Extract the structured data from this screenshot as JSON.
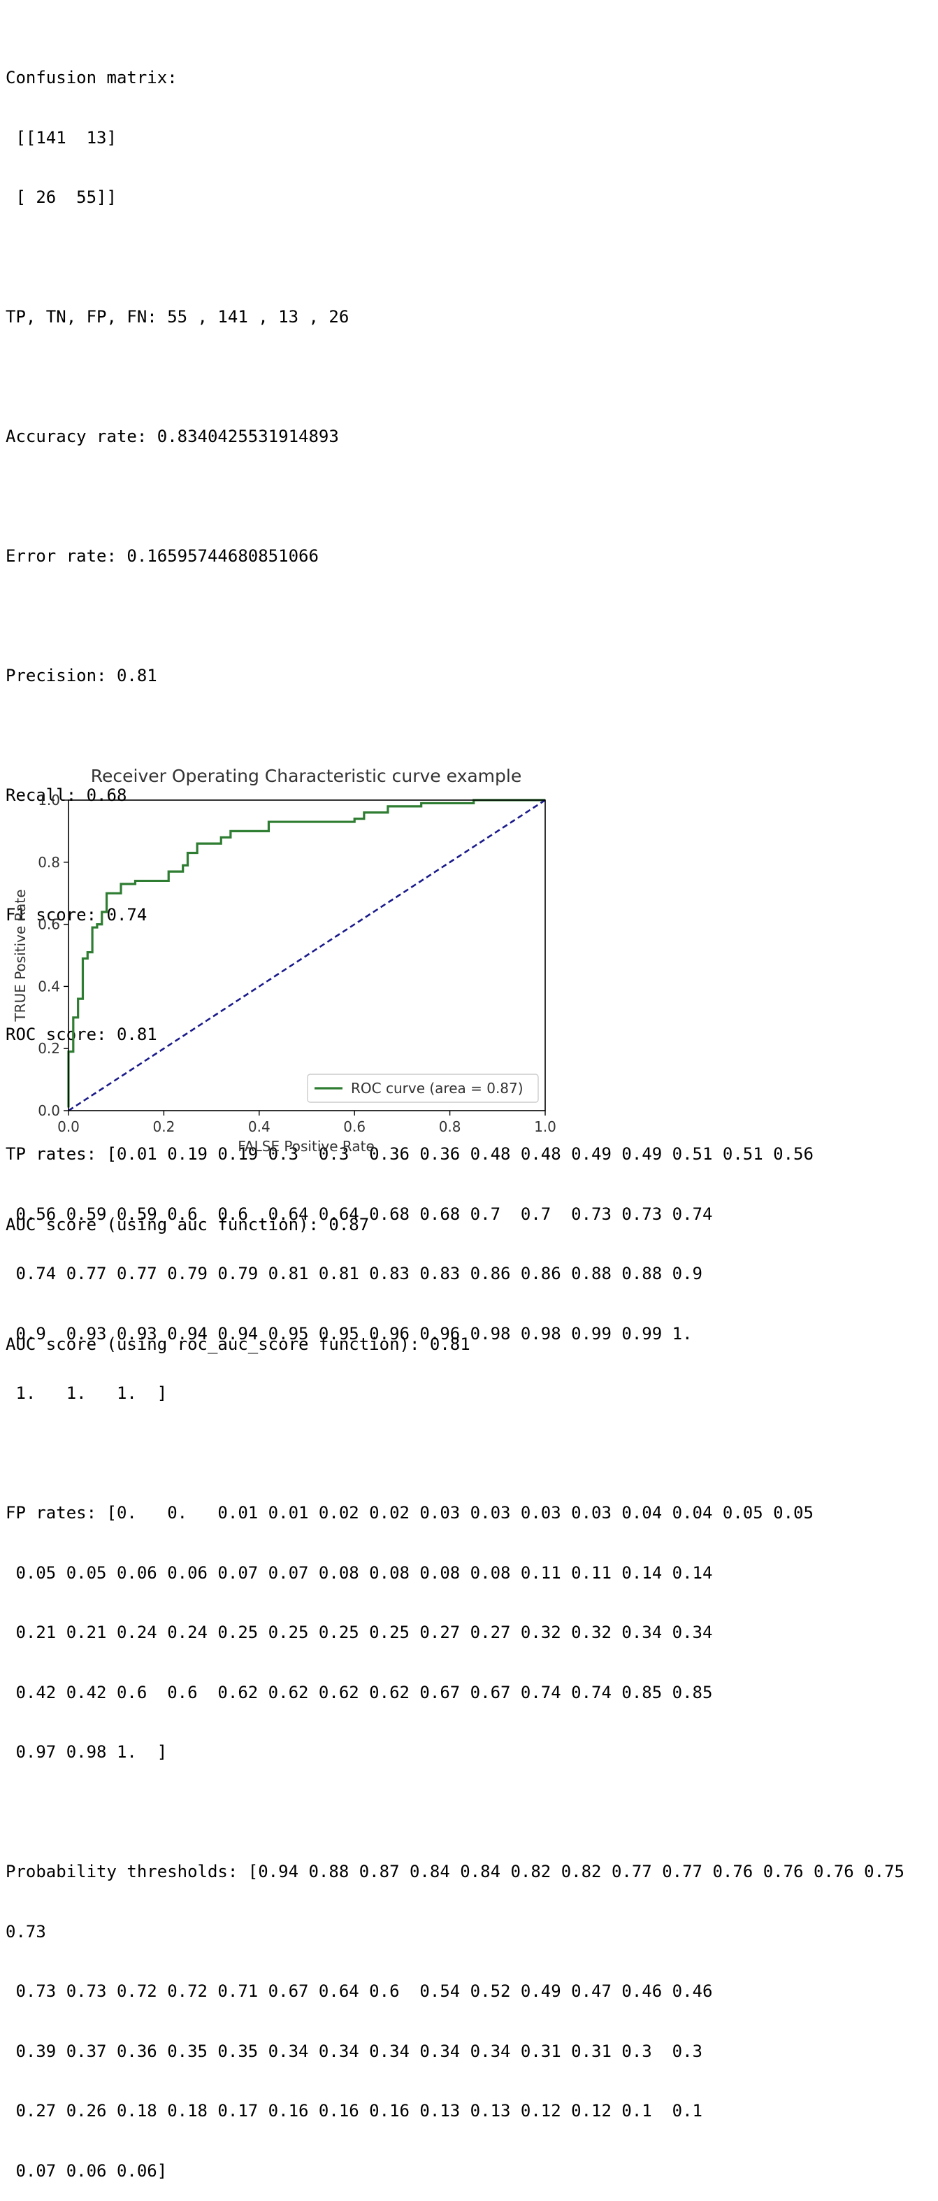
{
  "output": {
    "confusion_label": "Confusion matrix:",
    "confusion_row1": " [[141  13]",
    "confusion_row2": " [ 26  55]]",
    "tp_tn_fp_fn": "TP, TN, FP, FN: 55 , 141 , 13 , 26",
    "accuracy": "Accuracy rate: 0.8340425531914893",
    "error": "Error rate: 0.16595744680851066",
    "precision": "Precision: 0.81",
    "recall": "Recall: 0.68",
    "f1": "F1 score: 0.74",
    "roc_score": "ROC score: 0.81",
    "tp_rates_lines": [
      "TP rates: [0.01 0.19 0.19 0.3  0.3  0.36 0.36 0.48 0.48 0.49 0.49 0.51 0.51 0.56",
      " 0.56 0.59 0.59 0.6  0.6  0.64 0.64 0.68 0.68 0.7  0.7  0.73 0.73 0.74",
      " 0.74 0.77 0.77 0.79 0.79 0.81 0.81 0.83 0.83 0.86 0.86 0.88 0.88 0.9",
      " 0.9  0.93 0.93 0.94 0.94 0.95 0.95 0.96 0.96 0.98 0.98 0.99 0.99 1.",
      " 1.   1.   1.  ]"
    ],
    "fp_rates_lines": [
      "FP rates: [0.   0.   0.01 0.01 0.02 0.02 0.03 0.03 0.03 0.03 0.04 0.04 0.05 0.05",
      " 0.05 0.05 0.06 0.06 0.07 0.07 0.08 0.08 0.08 0.08 0.11 0.11 0.14 0.14",
      " 0.21 0.21 0.24 0.24 0.25 0.25 0.25 0.25 0.27 0.27 0.32 0.32 0.34 0.34",
      " 0.42 0.42 0.6  0.6  0.62 0.62 0.62 0.62 0.67 0.67 0.74 0.74 0.85 0.85",
      " 0.97 0.98 1.  ]"
    ],
    "threshold_lines": [
      "Probability thresholds: [0.94 0.88 0.87 0.84 0.84 0.82 0.82 0.77 0.77 0.76 0.76 0.76 0.75",
      "0.73",
      " 0.73 0.73 0.72 0.72 0.71 0.67 0.64 0.6  0.54 0.52 0.49 0.47 0.46 0.46",
      " 0.39 0.37 0.36 0.35 0.35 0.34 0.34 0.34 0.34 0.34 0.31 0.31 0.3  0.3",
      " 0.27 0.26 0.18 0.18 0.17 0.16 0.16 0.16 0.13 0.13 0.12 0.12 0.1  0.1",
      " 0.07 0.06 0.06]"
    ],
    "auc_fn": "AUC score (using auc function): 0.87",
    "auc_roc_fn": "AUC score (using roc_auc_score function): 0.81"
  },
  "chart_data": {
    "type": "line",
    "title": "Receiver Operating Characteristic curve example",
    "xlabel": "FALSE Positive Rate",
    "ylabel": "TRUE Positive Rate",
    "xlim": [
      0,
      1
    ],
    "ylim": [
      0,
      1
    ],
    "xticks": [
      "0.0",
      "0.2",
      "0.4",
      "0.6",
      "0.8",
      "1.0"
    ],
    "yticks": [
      "0.0",
      "0.2",
      "0.4",
      "0.6",
      "0.8",
      "1.0"
    ],
    "grid": false,
    "legend_position": "lower-right",
    "series": [
      {
        "name": "ROC curve (area = 0.87)",
        "color": "#2e7d32",
        "style": "solid",
        "x": [
          0,
          0,
          0.01,
          0.01,
          0.02,
          0.02,
          0.03,
          0.03,
          0.03,
          0.03,
          0.04,
          0.04,
          0.05,
          0.05,
          0.05,
          0.05,
          0.06,
          0.06,
          0.07,
          0.07,
          0.08,
          0.08,
          0.08,
          0.08,
          0.11,
          0.11,
          0.14,
          0.14,
          0.21,
          0.21,
          0.24,
          0.24,
          0.25,
          0.25,
          0.25,
          0.25,
          0.27,
          0.27,
          0.32,
          0.32,
          0.34,
          0.34,
          0.42,
          0.42,
          0.6,
          0.6,
          0.62,
          0.62,
          0.62,
          0.62,
          0.67,
          0.67,
          0.74,
          0.74,
          0.85,
          0.85,
          0.97,
          0.98,
          1
        ],
        "y": [
          0.01,
          0.19,
          0.19,
          0.3,
          0.3,
          0.36,
          0.36,
          0.48,
          0.48,
          0.49,
          0.49,
          0.51,
          0.51,
          0.56,
          0.56,
          0.59,
          0.59,
          0.6,
          0.6,
          0.64,
          0.64,
          0.68,
          0.68,
          0.7,
          0.7,
          0.73,
          0.73,
          0.74,
          0.74,
          0.77,
          0.77,
          0.79,
          0.79,
          0.81,
          0.81,
          0.83,
          0.83,
          0.86,
          0.86,
          0.88,
          0.88,
          0.9,
          0.9,
          0.93,
          0.93,
          0.94,
          0.94,
          0.95,
          0.95,
          0.96,
          0.96,
          0.98,
          0.98,
          0.99,
          0.99,
          1,
          1,
          1,
          1
        ]
      },
      {
        "name": "",
        "color": "#1a1a8c",
        "style": "dashed",
        "x": [
          0,
          1
        ],
        "y": [
          0,
          1
        ]
      }
    ]
  }
}
